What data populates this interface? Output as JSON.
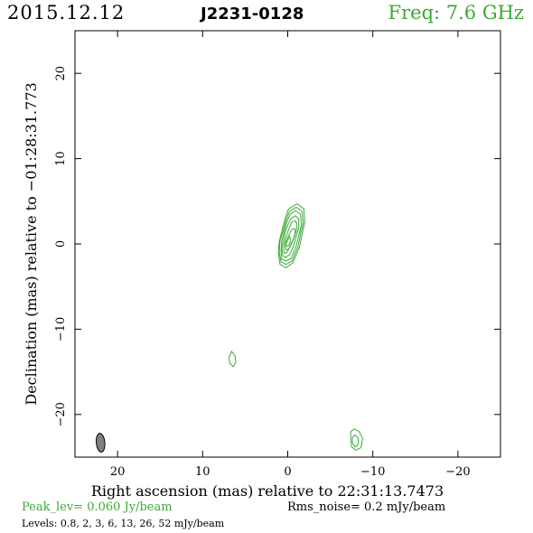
{
  "header": {
    "date": "2015.12.12",
    "source": "J2231-0128",
    "freq": "Freq: 7.6 GHz"
  },
  "footer": {
    "peak": "Peak_lev=  0.060 Jy/beam",
    "rms": "Rms_noise=  0.2 mJy/beam",
    "levels": "Levels: 0.8,   2,   3,   6,  13,  26,  52 mJy/beam"
  },
  "colors": {
    "contour": "#3aaa35",
    "beam_fill": "#808080",
    "axes": "#000000"
  },
  "chart_data": {
    "type": "contour",
    "title": "J2231-0128",
    "xlabel": "Right ascension (mas) relative to 22:31:13.7473",
    "ylabel": "Declination (mas) relative to −01:28:31.773",
    "xlim": [
      25,
      -25
    ],
    "ylim": [
      -25,
      25
    ],
    "xticks": [
      20,
      10,
      0,
      -10,
      -20
    ],
    "xticklabels": [
      "20",
      "10",
      "0",
      "−10",
      "−20"
    ],
    "yticks": [
      -20,
      -10,
      0,
      10,
      20
    ],
    "yticklabels": [
      "−20",
      "−10",
      "0",
      "10",
      "20"
    ],
    "beam": {
      "x": 22.0,
      "y": -23.3,
      "major_mas": 2.2,
      "minor_mas": 1.0,
      "pa_deg": -5
    },
    "contour_levels_mJy": [
      0.8,
      2,
      3,
      6,
      13,
      26,
      52
    ],
    "contours": [
      [
        [
          0.3,
          3.0
        ],
        [
          -0.1,
          4.1
        ],
        [
          -1.1,
          4.7
        ],
        [
          -1.9,
          4.1
        ],
        [
          -2.0,
          2.5
        ],
        [
          -1.7,
          1.2
        ],
        [
          -1.4,
          -0.3
        ],
        [
          -0.6,
          -2.2
        ],
        [
          0.2,
          -2.8
        ],
        [
          0.9,
          -2.4
        ],
        [
          1.1,
          -1.0
        ],
        [
          1.0,
          0.3
        ],
        [
          0.6,
          1.8
        ],
        [
          0.3,
          3.0
        ]
      ],
      [
        [
          0.2,
          2.8
        ],
        [
          -0.2,
          3.8
        ],
        [
          -1.0,
          4.3
        ],
        [
          -1.7,
          3.8
        ],
        [
          -1.8,
          2.4
        ],
        [
          -1.5,
          1.1
        ],
        [
          -1.2,
          -0.3
        ],
        [
          -0.5,
          -2.0
        ],
        [
          0.2,
          -2.4
        ],
        [
          0.8,
          -2.1
        ],
        [
          1.0,
          -0.9
        ],
        [
          0.9,
          0.4
        ],
        [
          0.5,
          1.7
        ],
        [
          0.2,
          2.8
        ]
      ],
      [
        [
          0.1,
          2.6
        ],
        [
          -0.3,
          3.5
        ],
        [
          -0.9,
          3.9
        ],
        [
          -1.5,
          3.5
        ],
        [
          -1.6,
          2.2
        ],
        [
          -1.3,
          1.0
        ],
        [
          -1.0,
          -0.2
        ],
        [
          -0.4,
          -1.7
        ],
        [
          0.2,
          -2.0
        ],
        [
          0.7,
          -1.8
        ],
        [
          0.8,
          -0.8
        ],
        [
          0.7,
          0.4
        ],
        [
          0.4,
          1.5
        ],
        [
          0.1,
          2.6
        ]
      ],
      [
        [
          0.0,
          2.2
        ],
        [
          -0.4,
          3.0
        ],
        [
          -0.9,
          3.3
        ],
        [
          -1.3,
          2.9
        ],
        [
          -1.3,
          1.9
        ],
        [
          -1.0,
          0.9
        ],
        [
          -0.7,
          -0.2
        ],
        [
          -0.2,
          -1.3
        ],
        [
          0.3,
          -1.6
        ],
        [
          0.6,
          -1.3
        ],
        [
          0.7,
          -0.5
        ],
        [
          0.5,
          0.5
        ],
        [
          0.3,
          1.4
        ],
        [
          0.0,
          2.2
        ]
      ],
      [
        [
          -0.2,
          1.9
        ],
        [
          -0.5,
          2.6
        ],
        [
          -0.9,
          2.7
        ],
        [
          -1.1,
          2.3
        ],
        [
          -1.0,
          1.5
        ],
        [
          -0.7,
          0.6
        ],
        [
          -0.3,
          -0.3
        ],
        [
          0.1,
          -1.0
        ],
        [
          0.4,
          -1.1
        ],
        [
          0.5,
          -0.7
        ],
        [
          0.4,
          0.1
        ],
        [
          0.2,
          0.9
        ],
        [
          -0.2,
          1.9
        ]
      ],
      [
        [
          -0.2,
          1.2
        ],
        [
          -0.5,
          1.7
        ],
        [
          -0.8,
          1.8
        ],
        [
          -0.9,
          1.4
        ],
        [
          -0.7,
          0.7
        ],
        [
          -0.4,
          0.0
        ],
        [
          -0.1,
          -0.6
        ],
        [
          0.2,
          -0.7
        ],
        [
          0.3,
          -0.3
        ],
        [
          0.2,
          0.3
        ],
        [
          0.0,
          0.8
        ],
        [
          -0.2,
          1.2
        ]
      ],
      [
        [
          -0.1,
          0.6
        ],
        [
          -0.2,
          0.9
        ],
        [
          -0.3,
          0.7
        ],
        [
          -0.3,
          0.2
        ],
        [
          -0.1,
          -0.2
        ],
        [
          0.1,
          -0.3
        ],
        [
          0.2,
          0.0
        ],
        [
          0.1,
          0.3
        ],
        [
          -0.1,
          0.6
        ]
      ],
      [
        [
          6.6,
          -12.6
        ],
        [
          6.2,
          -13.1
        ],
        [
          6.1,
          -13.9
        ],
        [
          6.4,
          -14.4
        ],
        [
          6.8,
          -14.0
        ],
        [
          6.9,
          -13.3
        ],
        [
          6.6,
          -12.6
        ]
      ],
      [
        [
          -7.8,
          -21.7
        ],
        [
          -8.4,
          -22.0
        ],
        [
          -8.8,
          -22.8
        ],
        [
          -8.6,
          -23.9
        ],
        [
          -8.0,
          -24.2
        ],
        [
          -7.5,
          -23.8
        ],
        [
          -7.4,
          -22.8
        ],
        [
          -7.4,
          -22.0
        ],
        [
          -7.8,
          -21.7
        ]
      ],
      [
        [
          -7.9,
          -22.4
        ],
        [
          -8.3,
          -22.8
        ],
        [
          -8.3,
          -23.5
        ],
        [
          -7.9,
          -23.8
        ],
        [
          -7.6,
          -23.3
        ],
        [
          -7.6,
          -22.7
        ],
        [
          -7.9,
          -22.4
        ]
      ]
    ]
  }
}
